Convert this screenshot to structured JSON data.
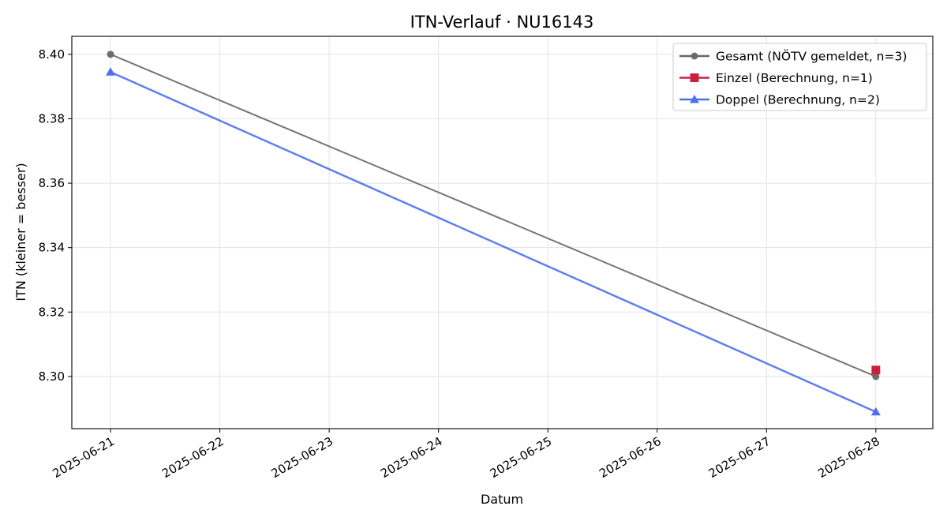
{
  "chart_data": {
    "type": "line",
    "title": "ITN-Verlauf · NU16143",
    "xlabel": "Datum",
    "ylabel": "ITN  (kleiner = besser)",
    "x_ticks": [
      "2025-06-21",
      "2025-06-22",
      "2025-06-23",
      "2025-06-24",
      "2025-06-25",
      "2025-06-26",
      "2025-06-27",
      "2025-06-28"
    ],
    "y_ticks": [
      "8.30",
      "8.32",
      "8.34",
      "8.36",
      "8.38",
      "8.40"
    ],
    "xlim": [
      "2025-06-20 15:30",
      "2025-06-28 12:30"
    ],
    "ylim": [
      8.2838,
      8.4056
    ],
    "grid": true,
    "legend_position": "top-right",
    "series": [
      {
        "name": "Gesamt (NÖTV gemeldet, n=3)",
        "color": "#666666",
        "marker": "circle",
        "points": [
          {
            "x": "2025-06-21",
            "y": 8.4
          },
          {
            "x": "2025-06-28",
            "y": 8.3
          }
        ]
      },
      {
        "name": "Einzel (Berechnung, n=1)",
        "color": "#cc1f3c",
        "marker": "square",
        "points": [
          {
            "x": "2025-06-28",
            "y": 8.302
          }
        ]
      },
      {
        "name": "Doppel (Berechnung, n=2)",
        "color": "#4f6ff0",
        "marker": "triangle",
        "points": [
          {
            "x": "2025-06-21",
            "y": 8.3945
          },
          {
            "x": "2025-06-28",
            "y": 8.289
          }
        ]
      }
    ]
  }
}
